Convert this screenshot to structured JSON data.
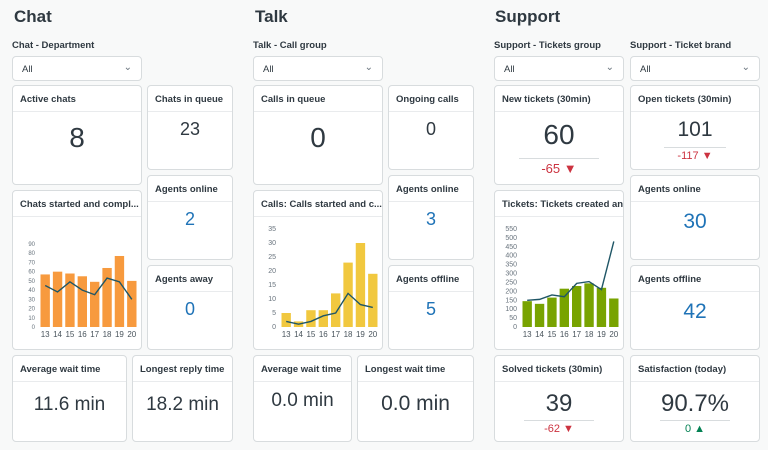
{
  "chat": {
    "title": "Chat",
    "filter_label": "Chat - Department",
    "filter_value": "All",
    "active_chats": {
      "label": "Active chats",
      "value": "8"
    },
    "chats_in_queue": {
      "label": "Chats in queue",
      "value": "23"
    },
    "agents_online": {
      "label": "Agents online",
      "value": "2"
    },
    "agents_away": {
      "label": "Agents away",
      "value": "0"
    },
    "avg_wait": {
      "label": "Average wait time",
      "value": "11.6 min"
    },
    "longest_reply": {
      "label": "Longest reply time",
      "value": "18.2 min"
    },
    "chart_title": "Chats started and compl..."
  },
  "talk": {
    "title": "Talk",
    "filter_label": "Talk - Call group",
    "filter_value": "All",
    "calls_in_queue": {
      "label": "Calls in queue",
      "value": "0"
    },
    "ongoing_calls": {
      "label": "Ongoing calls",
      "value": "0"
    },
    "agents_online": {
      "label": "Agents online",
      "value": "3"
    },
    "agents_offline": {
      "label": "Agents offline",
      "value": "5"
    },
    "avg_wait": {
      "label": "Average wait time",
      "value": "0.0 min"
    },
    "longest_wait": {
      "label": "Longest wait time",
      "value": "0.0 min"
    },
    "chart_title": "Calls: Calls started and c..."
  },
  "support": {
    "title": "Support",
    "filter1_label": "Support - Tickets group",
    "filter1_value": "All",
    "filter2_label": "Support - Ticket brand",
    "filter2_value": "All",
    "new_tickets": {
      "label": "New tickets (30min)",
      "value": "60",
      "delta": "-65"
    },
    "open_tickets": {
      "label": "Open tickets (30min)",
      "value": "101",
      "delta": "-117"
    },
    "agents_online": {
      "label": "Agents online",
      "value": "30"
    },
    "agents_offline": {
      "label": "Agents offline",
      "value": "42"
    },
    "solved_tickets": {
      "label": "Solved tickets (30min)",
      "value": "39",
      "delta": "-62"
    },
    "satisfaction": {
      "label": "Satisfaction (today)",
      "value": "90.7%",
      "delta": "0"
    },
    "chart_title": "Tickets: Tickets created and ..."
  },
  "colors": {
    "down": "#cc3340",
    "up": "#038153",
    "line": "#1f5666"
  },
  "chart_data": [
    {
      "type": "bar+line",
      "categories": [
        "13",
        "14",
        "15",
        "16",
        "17",
        "18",
        "19",
        "20"
      ],
      "ylim": [
        0,
        90
      ],
      "yticks": [
        0,
        10,
        20,
        30,
        40,
        50,
        60,
        70,
        80,
        90
      ],
      "bar_color": "#f79a3e",
      "series": [
        {
          "type": "bar",
          "values": [
            57,
            60,
            58,
            55,
            49,
            64,
            77,
            50
          ]
        },
        {
          "type": "line",
          "values": [
            45,
            38,
            49,
            40,
            35,
            53,
            49,
            30
          ]
        }
      ]
    },
    {
      "type": "bar+line",
      "categories": [
        "13",
        "14",
        "15",
        "16",
        "17",
        "18",
        "19",
        "20"
      ],
      "ylim": [
        0,
        35
      ],
      "yticks": [
        0,
        5,
        10,
        15,
        20,
        25,
        30,
        35
      ],
      "bar_color": "#f1c83f",
      "series": [
        {
          "type": "bar",
          "values": [
            5,
            2,
            6,
            6,
            12,
            23,
            30,
            19
          ]
        },
        {
          "type": "line",
          "values": [
            2,
            1,
            2,
            4,
            5,
            12,
            8,
            7
          ]
        }
      ]
    },
    {
      "type": "bar+line",
      "categories": [
        "13",
        "14",
        "15",
        "16",
        "17",
        "18",
        "19",
        "20"
      ],
      "ylim": [
        0,
        550
      ],
      "yticks": [
        0,
        50,
        100,
        150,
        200,
        250,
        300,
        350,
        400,
        450,
        500,
        550
      ],
      "bar_color": "#78a300",
      "series": [
        {
          "type": "bar",
          "values": [
            145,
            130,
            165,
            215,
            230,
            245,
            220,
            160
          ]
        },
        {
          "type": "line",
          "values": [
            150,
            155,
            180,
            170,
            245,
            255,
            210,
            480
          ]
        }
      ]
    }
  ]
}
